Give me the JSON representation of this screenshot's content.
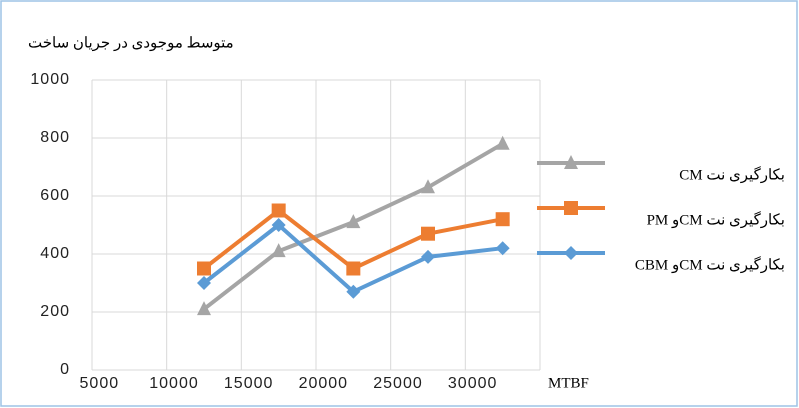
{
  "chart_data": {
    "type": "line",
    "title": "متوسط موجودی در جریان ساخت",
    "x_label": "MTBF",
    "categories": [
      "5000",
      "10000",
      "15000",
      "20000",
      "25000",
      "30000"
    ],
    "series": [
      {
        "name": "بکارگیری نت CM",
        "color": "#a5a5a5",
        "marker": "triangle",
        "values": [
          null,
          210,
          410,
          510,
          630,
          780
        ]
      },
      {
        "name": "بکارگیری نت CMو PM",
        "color": "#ed7d31",
        "marker": "square",
        "values": [
          null,
          350,
          550,
          350,
          470,
          520
        ]
      },
      {
        "name": "بکارگیری نت CMو CBM",
        "color": "#5b9bd5",
        "marker": "diamond",
        "values": [
          null,
          300,
          500,
          270,
          390,
          420
        ]
      }
    ],
    "ylim": [
      0,
      1000
    ],
    "yticks": [
      0,
      200,
      400,
      600,
      800,
      1000
    ],
    "grid": true,
    "legend": "right"
  }
}
